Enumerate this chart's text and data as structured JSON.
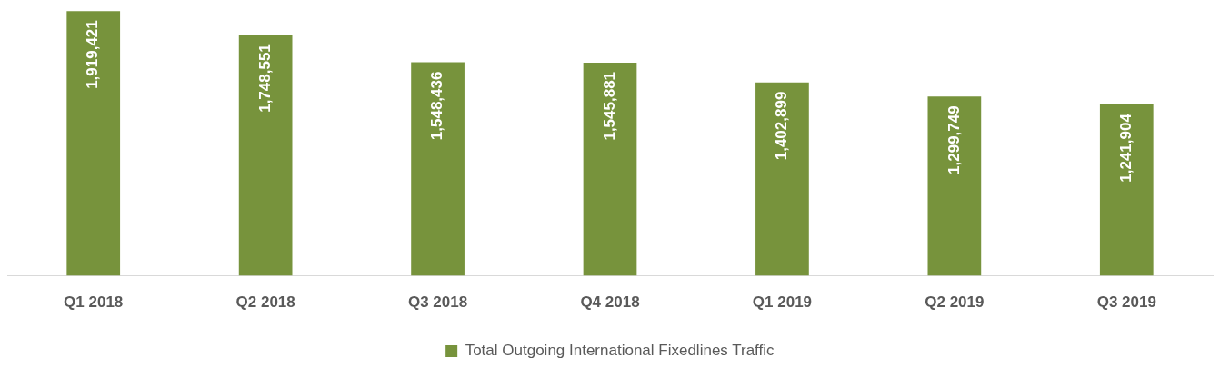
{
  "chart_data": {
    "type": "bar",
    "categories": [
      "Q1 2018",
      "Q2 2018",
      "Q3 2018",
      "Q4 2018",
      "Q1 2019",
      "Q2 2019",
      "Q3 2019"
    ],
    "series": [
      {
        "name": "Total Outgoing International Fixedlines Traffic",
        "color": "#77933c",
        "values": [
          1919421,
          1748551,
          1548436,
          1545881,
          1402899,
          1299749,
          1241904
        ],
        "value_labels": [
          "1,919,421",
          "1,748,551",
          "1,548,436",
          "1,545,881",
          "1,402,899",
          "1,299,749",
          "1,241,904"
        ]
      }
    ],
    "legend": "bottom",
    "grid": false
  }
}
